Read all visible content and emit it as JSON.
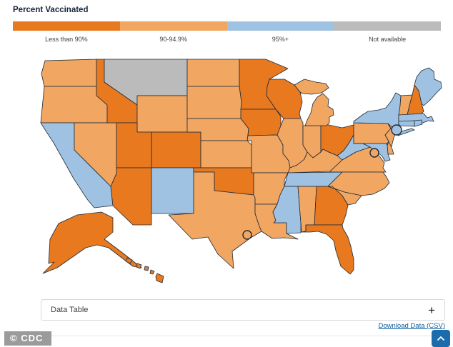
{
  "title": "Percent Vaccinated",
  "legend": {
    "categories": [
      {
        "label": "Less than 90%",
        "color": "#E8791F"
      },
      {
        "label": "90-94.9%",
        "color": "#F1A661"
      },
      {
        "label": "95%+",
        "color": "#A0C2E2"
      },
      {
        "label": "Not available",
        "color": "#BBBBBB"
      }
    ]
  },
  "chart_data": {
    "type": "choropleth",
    "title": "Percent Vaccinated",
    "legend_categories": [
      "Less than 90%",
      "90-94.9%",
      "95%+",
      "Not available"
    ],
    "states": {
      "AL": "90-94.9%",
      "AK": "Less than 90%",
      "AZ": "Less than 90%",
      "AR": "90-94.9%",
      "CA": "95%+",
      "CO": "Less than 90%",
      "CT": "95%+",
      "DE": "90-94.9%",
      "FL": "Less than 90%",
      "GA": "Less than 90%",
      "HI": "Less than 90%",
      "ID": "Less than 90%",
      "IL": "90-94.9%",
      "IN": "90-94.9%",
      "IA": "Less than 90%",
      "KS": "90-94.9%",
      "KY": "90-94.9%",
      "LA": "90-94.9%",
      "ME": "95%+",
      "MD": "95%+",
      "MA": "95%+",
      "MI": "90-94.9%",
      "MN": "Less than 90%",
      "MS": "95%+",
      "MO": "90-94.9%",
      "MT": "Not available",
      "NE": "90-94.9%",
      "NV": "90-94.9%",
      "NH": "Less than 90%",
      "NJ": "90-94.9%",
      "NM": "95%+",
      "NY": "95%+",
      "NC": "90-94.9%",
      "ND": "90-94.9%",
      "OH": "Less than 90%",
      "OK": "Less than 90%",
      "OR": "90-94.9%",
      "PA": "90-94.9%",
      "RI": "95%+",
      "SC": "90-94.9%",
      "SD": "90-94.9%",
      "TN": "95%+",
      "TX": "90-94.9%",
      "UT": "Less than 90%",
      "VT": "90-94.9%",
      "VA": "90-94.9%",
      "WA": "90-94.9%",
      "WV": "95%+",
      "WI": "Less than 90%",
      "WY": "90-94.9%"
    },
    "city_markers": {
      "New York City": "95%+",
      "District of Columbia": "90-94.9%",
      "Houston": "90-94.9%"
    }
  },
  "data_table": {
    "label": "Data Table",
    "expand_symbol": "+"
  },
  "download": {
    "label": "Download Data (CSV)"
  },
  "watermark": "© CDC",
  "icons": {
    "data_table_toggle": "plus",
    "scroll_to_top": "chevron-up"
  }
}
